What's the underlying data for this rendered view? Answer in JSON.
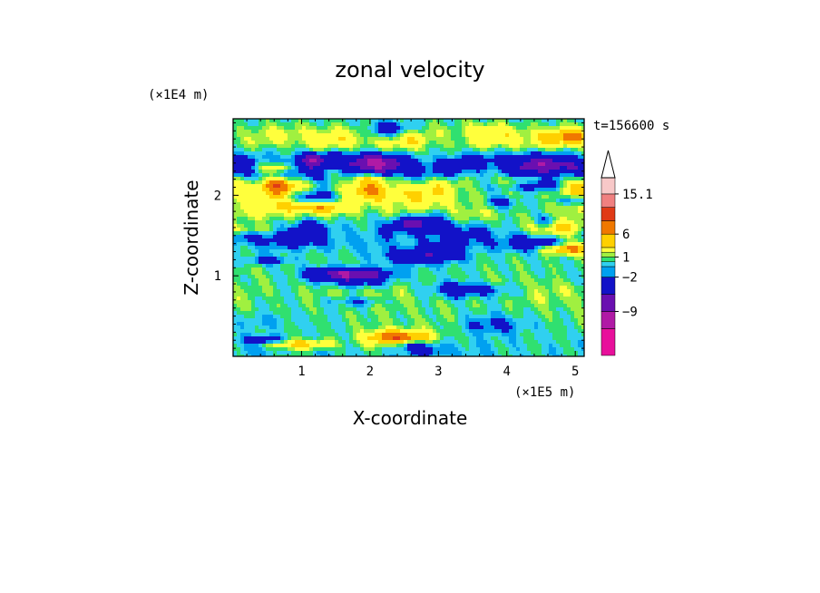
{
  "chart_data": {
    "type": "heatmap",
    "title": "zonal velocity",
    "xlabel": "X-coordinate",
    "ylabel": "Z-coordinate",
    "x_unit": "(×1E5 m)",
    "y_unit": "(×1E4 m)",
    "time_label": "t=156600 s",
    "xlim": [
      0,
      5.13
    ],
    "ylim": [
      0,
      2.95
    ],
    "x_ticks": [
      1,
      2,
      3,
      4,
      5
    ],
    "y_ticks": [
      1,
      2
    ],
    "colorbar": {
      "levels": [
        -15,
        -12,
        -9,
        -6,
        -2,
        -1,
        0,
        1,
        2,
        4,
        6,
        9,
        12,
        15.1
      ],
      "labels": [
        "15.1",
        "6",
        "1",
        "−2",
        "−9"
      ],
      "label_values": [
        15.1,
        6,
        1,
        -2,
        -9
      ],
      "colors": [
        "#e8109b",
        "#b01aa5",
        "#6a0fb0",
        "#1212c8",
        "#00a0f0",
        "#30d0f0",
        "#30e070",
        "#a0f040",
        "#ffff3c",
        "#ffd000",
        "#f07800",
        "#e03a16",
        "#f08080",
        "#f8c8c8"
      ],
      "extend_max": true
    },
    "bands": [
      {
        "z": 2.6,
        "u": 5
      },
      {
        "z": 2.4,
        "u": -12
      },
      {
        "z": 2.1,
        "u": 6
      },
      {
        "z": 1.8,
        "u": 3
      },
      {
        "z": 1.5,
        "u": -4
      },
      {
        "z": 1.2,
        "u": 0.5
      },
      {
        "z": 0.8,
        "u": 2
      },
      {
        "z": 0.4,
        "u": 1
      },
      {
        "z": 0.1,
        "u": -1
      }
    ]
  }
}
